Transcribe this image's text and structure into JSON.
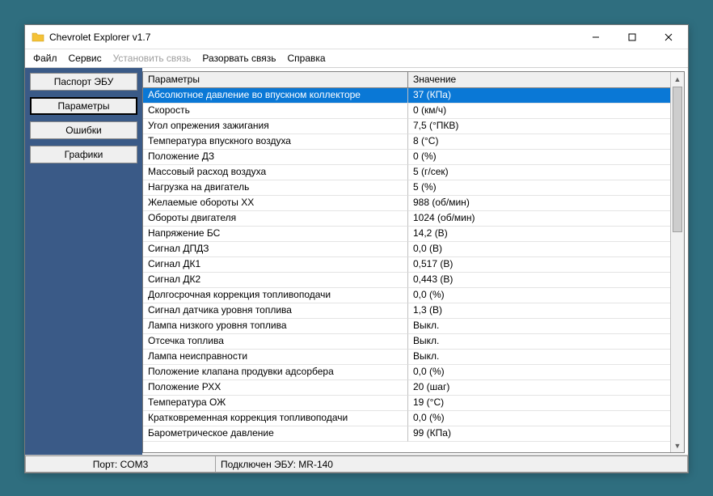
{
  "window": {
    "title": "Chevrolet Explorer v1.7",
    "icon_color": "#eab308"
  },
  "menubar": {
    "items": [
      {
        "label": "Файл",
        "disabled": false
      },
      {
        "label": "Сервис",
        "disabled": false
      },
      {
        "label": "Установить связь",
        "disabled": true
      },
      {
        "label": "Разорвать связь",
        "disabled": false
      },
      {
        "label": "Справка",
        "disabled": false
      }
    ]
  },
  "sidebar": {
    "buttons": [
      {
        "label": "Паспорт ЭБУ",
        "active": false
      },
      {
        "label": "Параметры",
        "active": true
      },
      {
        "label": "Ошибки",
        "active": false
      },
      {
        "label": "Графики",
        "active": false
      }
    ]
  },
  "grid": {
    "columns": {
      "param": "Параметры",
      "value": "Значение"
    },
    "selected_index": 0,
    "rows": [
      {
        "param": "Абсолютное давление во впускном коллекторе",
        "value": "37  (КПа)"
      },
      {
        "param": "Скорость",
        "value": "0  (км/ч)"
      },
      {
        "param": "Угол опрежения зажигания",
        "value": "7,5  (°ПКВ)"
      },
      {
        "param": "Температура впускного воздуха",
        "value": "8  (°C)"
      },
      {
        "param": "Положение ДЗ",
        "value": "0  (%)"
      },
      {
        "param": "Массовый расход воздуха",
        "value": "5  (г/сек)"
      },
      {
        "param": "Нагрузка на двигатель",
        "value": "5  (%)"
      },
      {
        "param": "Желаемые обороты ХХ",
        "value": "988  (об/мин)"
      },
      {
        "param": "Обороты двигателя",
        "value": "1024  (об/мин)"
      },
      {
        "param": "Напряжение БС",
        "value": "14,2  (В)"
      },
      {
        "param": "Сигнал ДПДЗ",
        "value": "0,0  (В)"
      },
      {
        "param": "Сигнал ДК1",
        "value": "0,517  (В)"
      },
      {
        "param": "Сигнал ДК2",
        "value": "0,443  (В)"
      },
      {
        "param": "Долгосрочная коррекция топливоподачи",
        "value": "0,0  (%)"
      },
      {
        "param": "Сигнал датчика уровня топлива",
        "value": "1,3  (В)"
      },
      {
        "param": "Лампа низкого уровня топлива",
        "value": "Выкл."
      },
      {
        "param": "Отсечка топлива",
        "value": "Выкл."
      },
      {
        "param": "Лампа неисправности",
        "value": "Выкл."
      },
      {
        "param": "Положение клапана продувки адсорбера",
        "value": "0,0  (%)"
      },
      {
        "param": "Положение РХХ",
        "value": "20  (шаг)"
      },
      {
        "param": "Температура ОЖ",
        "value": "19  (°C)"
      },
      {
        "param": "Кратковременная коррекция топливоподачи",
        "value": "0,0  (%)"
      },
      {
        "param": "Барометрическое давление",
        "value": "99  (КПа)"
      }
    ]
  },
  "statusbar": {
    "port": "Порт: COM3",
    "status": "Подключен ЭБУ: MR-140"
  },
  "colors": {
    "page_bg": "#2f6e7f",
    "sidebar_bg": "#3a5a87",
    "selected_row_bg": "#0a78d6",
    "selected_row_fg": "#ffffff",
    "button_bg": "#efefef",
    "border": "#808080"
  }
}
